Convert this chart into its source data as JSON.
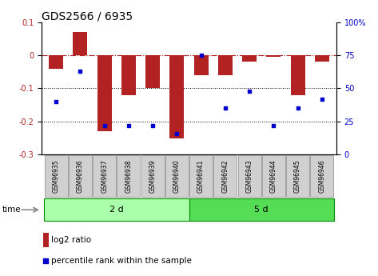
{
  "title": "GDS2566 / 6935",
  "samples": [
    "GSM96935",
    "GSM96936",
    "GSM96937",
    "GSM96938",
    "GSM96939",
    "GSM96940",
    "GSM96941",
    "GSM96942",
    "GSM96943",
    "GSM96944",
    "GSM96945",
    "GSM96946"
  ],
  "log2_ratio": [
    -0.04,
    0.07,
    -0.23,
    -0.12,
    -0.1,
    -0.25,
    -0.06,
    -0.06,
    -0.02,
    -0.005,
    -0.12,
    -0.02
  ],
  "percentile_rank": [
    40,
    63,
    22,
    22,
    22,
    16,
    75,
    35,
    48,
    22,
    35,
    42
  ],
  "group1_label": "2 d",
  "group2_label": "5 d",
  "group1_count": 6,
  "group2_count": 6,
  "bar_color": "#b22222",
  "scatter_color": "#0000cc",
  "ylim_left": [
    -0.3,
    0.1
  ],
  "ylim_right": [
    0,
    100
  ],
  "yticks_left": [
    -0.3,
    -0.2,
    -0.1,
    0.0,
    0.1
  ],
  "yticks_right": [
    0,
    25,
    50,
    75,
    100
  ],
  "dotted_lines": [
    -0.1,
    -0.2
  ],
  "group1_color": "#aaffaa",
  "group2_color": "#55dd55",
  "sample_box_color": "#d0d0d0",
  "time_label": "time",
  "legend_bar_label": "log2 ratio",
  "legend_scatter_label": "percentile rank within the sample",
  "title_fontsize": 10,
  "tick_fontsize": 7,
  "sample_fontsize": 5.5,
  "group_fontsize": 8,
  "legend_fontsize": 7.5
}
